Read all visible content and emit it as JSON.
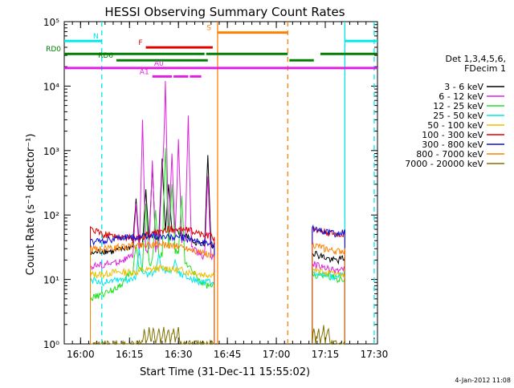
{
  "chart_data": {
    "type": "line",
    "title": "HESSI Observing Summary Count Rates",
    "xlabel": "Start Time (31-Dec-11 15:55:02)",
    "ylabel": "Count Rate (s⁻¹ detector⁻¹)",
    "x_unit": "minutes since 15:55:02",
    "xlim": [
      0,
      96
    ],
    "ylim_log10": [
      0,
      5
    ],
    "x_ticks": [
      {
        "t": 5,
        "label": "16:00"
      },
      {
        "t": 20,
        "label": "16:15"
      },
      {
        "t": 35,
        "label": "16:30"
      },
      {
        "t": 50,
        "label": "16:45"
      },
      {
        "t": 65,
        "label": "17:00"
      },
      {
        "t": 80,
        "label": "17:15"
      },
      {
        "t": 95,
        "label": "17:30"
      }
    ],
    "y_ticks": [
      {
        "e": 0,
        "label": "10⁰"
      },
      {
        "e": 1,
        "label": "10¹"
      },
      {
        "e": 2,
        "label": "10²"
      },
      {
        "e": 3,
        "label": "10³"
      },
      {
        "e": 4,
        "label": "10⁴"
      },
      {
        "e": 5,
        "label": "10⁵"
      }
    ],
    "legend": {
      "placement": "right",
      "header": [
        "Det 1,3,4,5,6,",
        "FDecim 1"
      ],
      "entries": [
        {
          "label": "3 - 6 keV",
          "color": "#000000"
        },
        {
          "label": "6 - 12 keV",
          "color": "#e020e0"
        },
        {
          "label": "12 - 25 keV",
          "color": "#20e020"
        },
        {
          "label": "25 - 50 keV",
          "color": "#00e8e8"
        },
        {
          "label": "50 - 100 keV",
          "color": "#e8c000"
        },
        {
          "label": "100 - 300 keV",
          "color": "#e00000"
        },
        {
          "label": "300 - 800 keV",
          "color": "#1010d0"
        },
        {
          "label": "800 - 7000 keV",
          "color": "#ff8000"
        },
        {
          "label": "7000 - 20000 keV",
          "color": "#807000"
        }
      ]
    },
    "flag_bars": [
      {
        "label": "N",
        "color": "#00e8e8",
        "y_log10": 4.7,
        "segments": [
          [
            0,
            11.5
          ],
          [
            86,
            96
          ]
        ]
      },
      {
        "label": "S",
        "color": "#ff8000",
        "y_log10": 4.83,
        "segments": [
          [
            47,
            68.5
          ]
        ]
      },
      {
        "label": "F",
        "color": "#e00000",
        "y_log10": 4.6,
        "segments": [
          [
            25,
            45.5
          ]
        ]
      },
      {
        "label": "RD0",
        "color": "#008000",
        "y_log10": 4.5,
        "segments": [
          [
            0,
            43
          ],
          [
            43.5,
            68.5
          ],
          [
            78.5,
            96
          ]
        ]
      },
      {
        "label": "RD6",
        "color": "#008000",
        "y_log10": 4.4,
        "segments": [
          [
            16,
            44
          ],
          [
            69,
            76.5
          ]
        ]
      },
      {
        "label": "A0",
        "color": "#e020e0",
        "y_log10": 4.28,
        "segments": [
          [
            0,
            96
          ]
        ]
      },
      {
        "label": "A1",
        "color": "#e020e0",
        "y_log10": 4.15,
        "segments": [
          [
            27,
            33
          ],
          [
            33.5,
            38
          ],
          [
            38.5,
            42
          ]
        ]
      }
    ],
    "vlines": [
      {
        "t": 11.5,
        "color": "#00e8e8",
        "style": "dashed"
      },
      {
        "t": 47,
        "color": "#ff8000",
        "style": "solid"
      },
      {
        "t": 68.5,
        "color": "#ff8000",
        "style": "dashed"
      },
      {
        "t": 86,
        "color": "#00e8e8",
        "style": "solid"
      },
      {
        "t": 95,
        "color": "#00e8e8",
        "style": "dashed"
      }
    ],
    "gap": {
      "from": 46.5,
      "to": 75
    },
    "series": [
      {
        "name": "3 - 6 keV",
        "color": "#000000",
        "points": [
          [
            8,
            25
          ],
          [
            12,
            28
          ],
          [
            15,
            27
          ],
          [
            18,
            30
          ],
          [
            20,
            32
          ],
          [
            22,
            33
          ],
          [
            24,
            35
          ],
          [
            26,
            38
          ],
          [
            28,
            40
          ],
          [
            30,
            50
          ],
          [
            32,
            55
          ],
          [
            34,
            55
          ],
          [
            36,
            52
          ],
          [
            38,
            45
          ],
          [
            40,
            38
          ],
          [
            42,
            35
          ],
          [
            44,
            34
          ],
          [
            46,
            35
          ],
          [
            76,
            27
          ],
          [
            78,
            24
          ],
          [
            80,
            22
          ],
          [
            82,
            20
          ],
          [
            84,
            20
          ],
          [
            86,
            22
          ]
        ],
        "spikes": [
          [
            22,
            180
          ],
          [
            25,
            250
          ],
          [
            27,
            600
          ],
          [
            30,
            750
          ],
          [
            32,
            300
          ],
          [
            44,
            850
          ]
        ]
      },
      {
        "name": "6 - 12 keV",
        "color": "#e020e0",
        "points": [
          [
            8,
            16
          ],
          [
            12,
            17
          ],
          [
            15,
            18
          ],
          [
            18,
            20
          ],
          [
            20,
            22
          ],
          [
            22,
            24
          ],
          [
            24,
            26
          ],
          [
            26,
            28
          ],
          [
            28,
            30
          ],
          [
            30,
            35
          ],
          [
            32,
            40
          ],
          [
            34,
            45
          ],
          [
            36,
            40
          ],
          [
            38,
            33
          ],
          [
            40,
            28
          ],
          [
            42,
            24
          ],
          [
            44,
            22
          ],
          [
            46,
            22
          ],
          [
            76,
            18
          ],
          [
            78,
            16
          ],
          [
            80,
            15
          ],
          [
            82,
            14
          ],
          [
            84,
            14
          ],
          [
            86,
            15
          ]
        ],
        "spikes": [
          [
            22,
            150
          ],
          [
            24,
            3000
          ],
          [
            27,
            700
          ],
          [
            30,
            550
          ],
          [
            31,
            12000
          ],
          [
            33,
            900
          ],
          [
            35,
            1500
          ],
          [
            38,
            3500
          ],
          [
            44,
            400
          ]
        ]
      },
      {
        "name": "12 - 25 keV",
        "color": "#20e020",
        "points": [
          [
            8,
            5
          ],
          [
            12,
            6
          ],
          [
            15,
            7
          ],
          [
            18,
            9
          ],
          [
            20,
            12
          ],
          [
            22,
            14
          ],
          [
            24,
            15
          ],
          [
            26,
            18
          ],
          [
            28,
            20
          ],
          [
            30,
            25
          ],
          [
            32,
            30
          ],
          [
            34,
            28
          ],
          [
            36,
            22
          ],
          [
            38,
            16
          ],
          [
            40,
            12
          ],
          [
            42,
            9
          ],
          [
            44,
            8
          ],
          [
            46,
            8
          ],
          [
            76,
            12
          ],
          [
            78,
            11
          ],
          [
            80,
            12
          ],
          [
            82,
            11
          ],
          [
            84,
            10
          ],
          [
            86,
            10
          ]
        ],
        "spikes": [
          [
            22,
            35
          ],
          [
            25,
            150
          ],
          [
            28,
            120
          ],
          [
            31,
            1100
          ],
          [
            33,
            300
          ],
          [
            36,
            200
          ]
        ]
      },
      {
        "name": "25 - 50 keV",
        "color": "#00e8e8",
        "points": [
          [
            8,
            10
          ],
          [
            12,
            9
          ],
          [
            15,
            10
          ],
          [
            18,
            10
          ],
          [
            20,
            10
          ],
          [
            22,
            11
          ],
          [
            24,
            12
          ],
          [
            26,
            12
          ],
          [
            28,
            13
          ],
          [
            30,
            14
          ],
          [
            32,
            14
          ],
          [
            34,
            13
          ],
          [
            36,
            12
          ],
          [
            38,
            11
          ],
          [
            40,
            10
          ],
          [
            42,
            9
          ],
          [
            44,
            9
          ],
          [
            46,
            9
          ],
          [
            76,
            13
          ],
          [
            78,
            12
          ],
          [
            80,
            12
          ],
          [
            82,
            11
          ],
          [
            84,
            11
          ],
          [
            86,
            12
          ]
        ],
        "spikes": [
          [
            23,
            30
          ],
          [
            29,
            25
          ],
          [
            34,
            20
          ]
        ]
      },
      {
        "name": "50 - 100 keV",
        "color": "#e8c000",
        "points": [
          [
            8,
            12
          ],
          [
            12,
            12
          ],
          [
            15,
            13
          ],
          [
            18,
            13
          ],
          [
            20,
            13
          ],
          [
            22,
            13
          ],
          [
            24,
            14
          ],
          [
            26,
            14
          ],
          [
            28,
            15
          ],
          [
            30,
            15
          ],
          [
            32,
            15
          ],
          [
            34,
            14
          ],
          [
            36,
            14
          ],
          [
            38,
            13
          ],
          [
            40,
            13
          ],
          [
            42,
            12
          ],
          [
            44,
            12
          ],
          [
            46,
            12
          ],
          [
            76,
            14
          ],
          [
            78,
            13
          ],
          [
            80,
            13
          ],
          [
            82,
            12
          ],
          [
            84,
            12
          ],
          [
            86,
            12
          ]
        ],
        "spikes": []
      },
      {
        "name": "100 - 300 keV",
        "color": "#e00000",
        "points": [
          [
            8,
            60
          ],
          [
            10,
            55
          ],
          [
            12,
            50
          ],
          [
            15,
            48
          ],
          [
            18,
            45
          ],
          [
            20,
            44
          ],
          [
            22,
            45
          ],
          [
            24,
            46
          ],
          [
            26,
            50
          ],
          [
            28,
            52
          ],
          [
            30,
            55
          ],
          [
            32,
            60
          ],
          [
            34,
            62
          ],
          [
            36,
            60
          ],
          [
            38,
            58
          ],
          [
            40,
            55
          ],
          [
            42,
            50
          ],
          [
            44,
            48
          ],
          [
            46,
            45
          ],
          [
            76,
            60
          ],
          [
            78,
            58
          ],
          [
            80,
            55
          ],
          [
            82,
            52
          ],
          [
            84,
            50
          ],
          [
            86,
            50
          ]
        ],
        "spikes": []
      },
      {
        "name": "300 - 800 keV",
        "color": "#1010d0",
        "points": [
          [
            8,
            38
          ],
          [
            12,
            40
          ],
          [
            15,
            42
          ],
          [
            18,
            44
          ],
          [
            20,
            45
          ],
          [
            22,
            46
          ],
          [
            24,
            47
          ],
          [
            26,
            48
          ],
          [
            28,
            48
          ],
          [
            30,
            47
          ],
          [
            32,
            46
          ],
          [
            34,
            45
          ],
          [
            36,
            44
          ],
          [
            38,
            42
          ],
          [
            40,
            40
          ],
          [
            42,
            38
          ],
          [
            44,
            37
          ],
          [
            46,
            35
          ],
          [
            76,
            65
          ],
          [
            78,
            60
          ],
          [
            80,
            55
          ],
          [
            82,
            52
          ],
          [
            84,
            50
          ],
          [
            86,
            55
          ]
        ],
        "spikes": []
      },
      {
        "name": "800 - 7000 keV",
        "color": "#ff8000",
        "points": [
          [
            8,
            30
          ],
          [
            12,
            30
          ],
          [
            15,
            31
          ],
          [
            18,
            32
          ],
          [
            20,
            33
          ],
          [
            22,
            34
          ],
          [
            24,
            34
          ],
          [
            26,
            35
          ],
          [
            28,
            35
          ],
          [
            30,
            35
          ],
          [
            32,
            34
          ],
          [
            34,
            33
          ],
          [
            36,
            32
          ],
          [
            38,
            30
          ],
          [
            40,
            28
          ],
          [
            42,
            26
          ],
          [
            44,
            24
          ],
          [
            46,
            22
          ],
          [
            76,
            35
          ],
          [
            78,
            32
          ],
          [
            80,
            30
          ],
          [
            82,
            28
          ],
          [
            84,
            27
          ],
          [
            86,
            28
          ]
        ],
        "spikes": []
      },
      {
        "name": "7000 - 20000 keV",
        "color": "#807000",
        "points": [
          [
            8,
            1
          ],
          [
            24,
            1
          ],
          [
            24.5,
            1.8
          ],
          [
            25,
            1
          ],
          [
            26,
            1.8
          ],
          [
            26.5,
            1
          ],
          [
            27.5,
            1.8
          ],
          [
            28,
            1
          ],
          [
            29,
            1.8
          ],
          [
            29.5,
            1
          ],
          [
            30.5,
            1.8
          ],
          [
            31,
            1
          ],
          [
            32,
            1.8
          ],
          [
            32.5,
            1
          ],
          [
            33.5,
            1.8
          ],
          [
            34,
            1
          ],
          [
            35,
            1.8
          ],
          [
            35.5,
            1
          ],
          [
            46,
            1
          ],
          [
            76,
            1
          ],
          [
            76.5,
            1.8
          ],
          [
            77,
            1
          ],
          [
            78,
            1.8
          ],
          [
            78.5,
            1
          ],
          [
            79.5,
            1.8
          ],
          [
            80,
            1
          ],
          [
            81,
            1.8
          ],
          [
            81.5,
            1
          ],
          [
            86,
            1
          ]
        ],
        "spikes": []
      }
    ],
    "footer_date": "4-Jan-2012 11:08"
  }
}
